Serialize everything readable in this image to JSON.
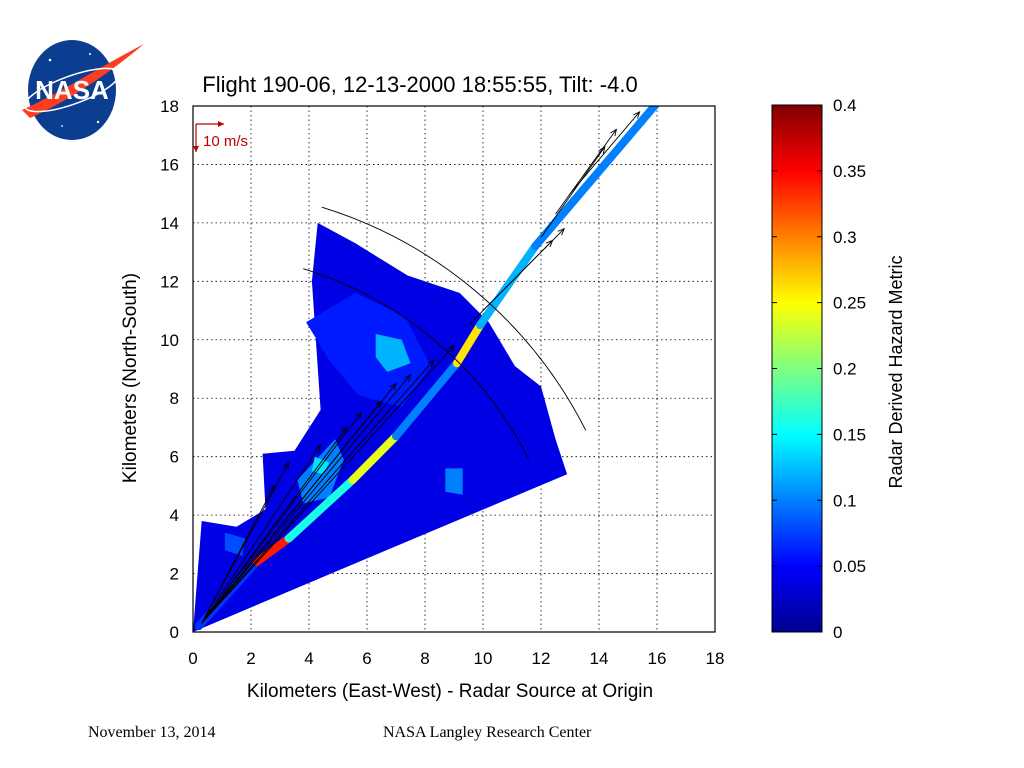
{
  "slide": {
    "logo_text": "NASA",
    "footer_date": "November 13, 2014",
    "footer_center": "NASA Langley Research Center"
  },
  "chart_data": {
    "type": "heatmap",
    "title": "Flight 190-06, 12-13-2000 18:55:55, Tilt: -4.0",
    "xlabel": "Kilometers (East-West) - Radar Source at Origin",
    "ylabel": "Kilometers (North-South)",
    "xlim": [
      0,
      18
    ],
    "ylim": [
      0,
      18
    ],
    "x_ticks": [
      0,
      2,
      4,
      6,
      8,
      10,
      12,
      14,
      16,
      18
    ],
    "y_ticks": [
      0,
      2,
      4,
      6,
      8,
      10,
      12,
      14,
      16,
      18
    ],
    "grid": true,
    "annotation": "10 m/s",
    "colorbar": {
      "label": "Radar Derived Hazard Metric",
      "range": [
        0,
        0.4
      ],
      "ticks": [
        "0",
        "0.05",
        "0.1",
        "0.15",
        "0.2",
        "0.25",
        "0.3",
        "0.35",
        "0.4"
      ],
      "colormap": "jet"
    },
    "hazard_field": {
      "sector_vertices_km": [
        [
          0,
          0
        ],
        [
          0.3,
          3.8
        ],
        [
          1.5,
          3.6
        ],
        [
          2.5,
          4.2
        ],
        [
          2.4,
          6.1
        ],
        [
          3.5,
          6.2
        ],
        [
          4.4,
          7.6
        ],
        [
          4.1,
          12.0
        ],
        [
          4.3,
          14.0
        ],
        [
          5.6,
          13.3
        ],
        [
          7.4,
          12.2
        ],
        [
          9.2,
          11.6
        ],
        [
          10.2,
          10.6
        ],
        [
          11.1,
          9.1
        ],
        [
          12.0,
          8.4
        ],
        [
          12.5,
          6.6
        ],
        [
          12.9,
          5.4
        ],
        [
          5.0,
          2.1
        ]
      ],
      "regions": [
        {
          "vertices_km": [
            [
              3.9,
              10.6
            ],
            [
              5.6,
              11.6
            ],
            [
              7.3,
              10.8
            ],
            [
              8.2,
              9.1
            ],
            [
              7.2,
              7.7
            ],
            [
              5.7,
              8.1
            ],
            [
              4.7,
              9.3
            ]
          ],
          "value": 0.06
        },
        {
          "vertices_km": [
            [
              6.3,
              10.2
            ],
            [
              7.2,
              10.0
            ],
            [
              7.5,
              9.2
            ],
            [
              6.7,
              8.9
            ],
            [
              6.3,
              9.4
            ]
          ],
          "value": 0.12
        },
        {
          "vertices_km": [
            [
              3.6,
              5.2
            ],
            [
              4.9,
              6.6
            ],
            [
              5.2,
              5.9
            ],
            [
              4.7,
              4.6
            ],
            [
              3.8,
              4.4
            ]
          ],
          "value": 0.1
        },
        {
          "vertices_km": [
            [
              4.2,
              6.0
            ],
            [
              4.7,
              5.8
            ],
            [
              4.5,
              5.4
            ],
            [
              4.1,
              5.5
            ]
          ],
          "value": 0.14
        },
        {
          "vertices_km": [
            [
              1.1,
              3.4
            ],
            [
              1.8,
              3.2
            ],
            [
              1.7,
              2.6
            ],
            [
              1.1,
              2.8
            ]
          ],
          "value": 0.08
        },
        {
          "vertices_km": [
            [
              8.7,
              5.6
            ],
            [
              9.3,
              5.6
            ],
            [
              9.3,
              4.7
            ],
            [
              8.7,
              4.8
            ]
          ],
          "value": 0.1
        }
      ],
      "beam": [
        {
          "from_km": [
            0.2,
            0.2
          ],
          "to_km": [
            2.2,
            2.4
          ],
          "value": 0.07
        },
        {
          "from_km": [
            2.2,
            2.4
          ],
          "to_km": [
            3.3,
            3.2
          ],
          "value": 0.34
        },
        {
          "from_km": [
            3.3,
            3.2
          ],
          "to_km": [
            5.5,
            5.2
          ],
          "value": 0.16
        },
        {
          "from_km": [
            5.5,
            5.2
          ],
          "to_km": [
            7.0,
            6.7
          ],
          "value": 0.24
        },
        {
          "from_km": [
            7.0,
            6.7
          ],
          "to_km": [
            9.1,
            9.2
          ],
          "value": 0.1
        },
        {
          "from_km": [
            9.1,
            9.2
          ],
          "to_km": [
            9.9,
            10.5
          ],
          "value": 0.26
        },
        {
          "from_km": [
            9.9,
            10.5
          ],
          "to_km": [
            11.8,
            13.2
          ],
          "value": 0.12
        },
        {
          "from_km": [
            11.8,
            13.2
          ],
          "to_km": [
            16.0,
            18.1
          ],
          "value": 0.1
        }
      ]
    },
    "wind_vectors": [
      {
        "from_km": [
          0.3,
          0.3
        ],
        "to_km": [
          2.8,
          5.0
        ]
      },
      {
        "from_km": [
          0.3,
          0.3
        ],
        "to_km": [
          3.3,
          5.8
        ]
      },
      {
        "from_km": [
          0.3,
          0.3
        ],
        "to_km": [
          4.4,
          6.4
        ]
      },
      {
        "from_km": [
          0.3,
          0.3
        ],
        "to_km": [
          5.3,
          7.0
        ]
      },
      {
        "from_km": [
          0.3,
          0.3
        ],
        "to_km": [
          5.8,
          7.5
        ]
      },
      {
        "from_km": [
          0.3,
          0.3
        ],
        "to_km": [
          6.5,
          7.9
        ]
      },
      {
        "from_km": [
          0.3,
          0.3
        ],
        "to_km": [
          7.0,
          8.5
        ]
      },
      {
        "from_km": [
          0.3,
          0.3
        ],
        "to_km": [
          7.5,
          8.8
        ]
      },
      {
        "from_km": [
          0.3,
          0.3
        ],
        "to_km": [
          8.3,
          9.3
        ]
      },
      {
        "from_km": [
          0.3,
          0.3
        ],
        "to_km": [
          9.0,
          9.8
        ]
      },
      {
        "from_km": [
          9.5,
          10.5
        ],
        "to_km": [
          12.4,
          13.4
        ]
      },
      {
        "from_km": [
          10.0,
          11.0
        ],
        "to_km": [
          12.8,
          13.8
        ]
      },
      {
        "from_km": [
          12.0,
          13.5
        ],
        "to_km": [
          14.2,
          16.6
        ]
      },
      {
        "from_km": [
          12.5,
          14.3
        ],
        "to_km": [
          14.6,
          17.2
        ]
      },
      {
        "from_km": [
          13.0,
          15.0
        ],
        "to_km": [
          15.4,
          17.8
        ]
      }
    ],
    "range_rings_km": [
      13.0,
      15.2
    ]
  }
}
